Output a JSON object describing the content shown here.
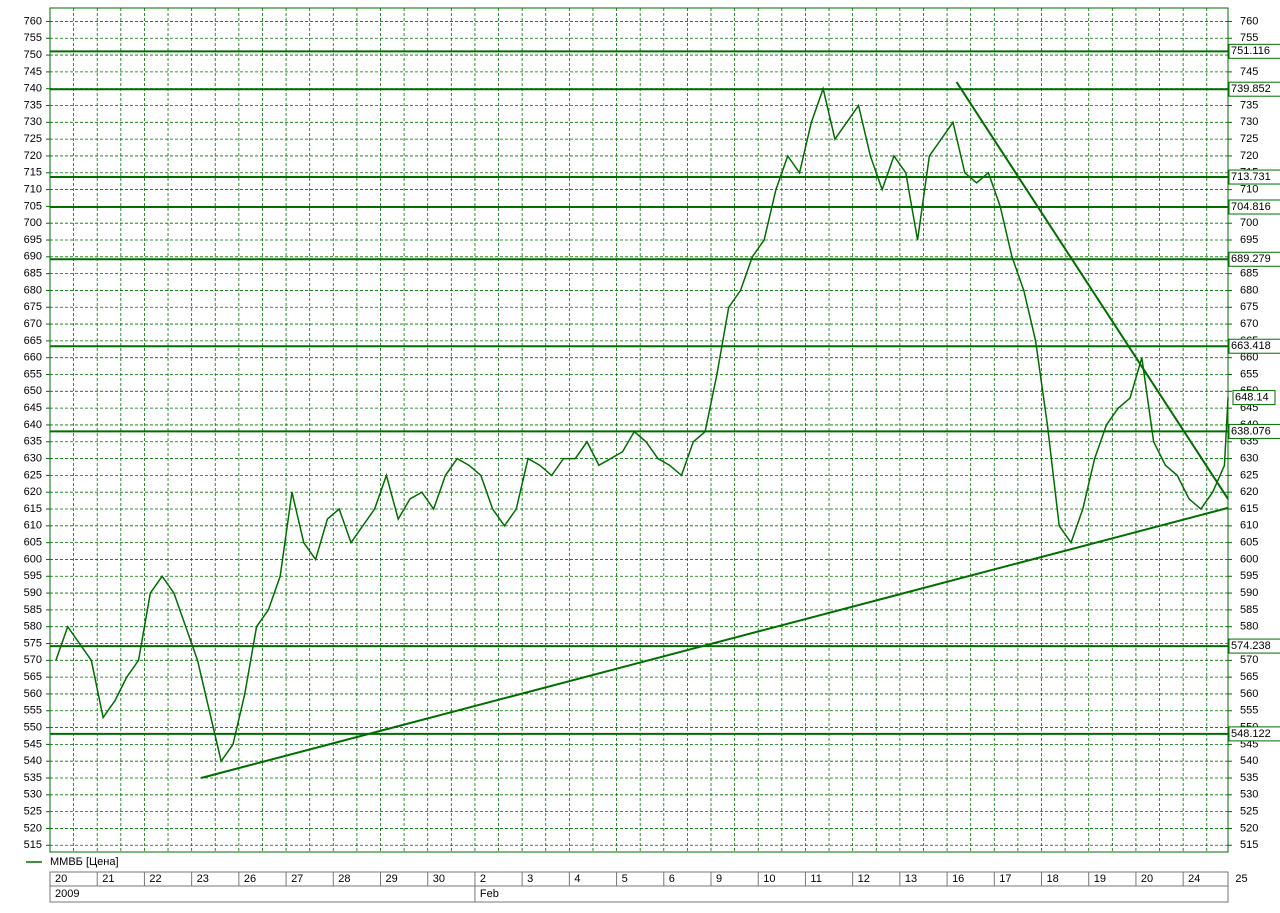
{
  "chart_data": {
    "type": "line",
    "series": [
      {
        "name": "ММВБ [Цена]",
        "color": "#006e00",
        "x": [
          0.125,
          0.375,
          0.625,
          0.875,
          1.125,
          1.375,
          1.625,
          1.875,
          2.125,
          2.375,
          2.625,
          2.875,
          3.125,
          3.375,
          3.625,
          3.875,
          4.125,
          4.375,
          4.625,
          4.875,
          5.125,
          5.375,
          5.625,
          5.875,
          6.125,
          6.375,
          6.625,
          6.875,
          7.125,
          7.375,
          7.625,
          7.875,
          8.125,
          8.375,
          8.625,
          8.875,
          9.125,
          9.375,
          9.625,
          9.875,
          10.125,
          10.375,
          10.625,
          10.875,
          11.125,
          11.375,
          11.625,
          11.875,
          12.125,
          12.375,
          12.625,
          12.875,
          13.125,
          13.375,
          13.625,
          13.875,
          14.125,
          14.375,
          14.625,
          14.875,
          15.125,
          15.375,
          15.625,
          15.875,
          16.125,
          16.375,
          16.625,
          16.875,
          17.125,
          17.375,
          17.625,
          17.875,
          18.125,
          18.375,
          18.625,
          18.875,
          19.125,
          19.375,
          19.625,
          19.875,
          20.125,
          20.375,
          20.625,
          20.875,
          21.125,
          21.375,
          21.625,
          21.875,
          22.125,
          22.375,
          22.625,
          22.875,
          23.125,
          23.375,
          23.625,
          23.875,
          24.125,
          24.375,
          24.625,
          24.875,
          24.95
        ],
        "values": [
          570,
          580,
          575,
          570,
          553,
          558,
          565,
          570,
          590,
          595,
          590,
          580,
          570,
          555,
          540,
          545,
          560,
          580,
          585,
          595,
          620,
          605,
          600,
          612,
          615,
          605,
          610,
          615,
          625,
          612,
          618,
          620,
          615,
          625,
          630,
          628,
          625,
          615,
          610,
          615,
          630,
          628,
          625,
          630,
          630,
          635,
          628,
          630,
          632,
          638,
          635,
          630,
          628,
          625,
          635,
          638,
          655,
          675,
          680,
          690,
          695,
          710,
          720,
          715,
          730,
          740,
          725,
          730,
          735,
          720,
          710,
          720,
          715,
          695,
          720,
          725,
          730,
          715,
          712,
          715,
          705,
          690,
          680,
          665,
          640,
          610,
          605,
          615,
          630,
          640,
          645,
          648,
          660,
          635,
          628,
          625,
          618,
          615,
          620,
          628,
          648.14
        ]
      }
    ],
    "xlim": [
      0,
      24.95
    ],
    "ylim": [
      513,
      764
    ],
    "xticks": [
      {
        "value": 0,
        "label": "20"
      },
      {
        "value": 1,
        "label": "21"
      },
      {
        "value": 2,
        "label": "22"
      },
      {
        "value": 3,
        "label": "23"
      },
      {
        "value": 4,
        "label": "26"
      },
      {
        "value": 5,
        "label": "27"
      },
      {
        "value": 6,
        "label": "28"
      },
      {
        "value": 7,
        "label": "29"
      },
      {
        "value": 8,
        "label": "30"
      },
      {
        "value": 9,
        "label": "2"
      },
      {
        "value": 10,
        "label": "3"
      },
      {
        "value": 11,
        "label": "4"
      },
      {
        "value": 12,
        "label": "5"
      },
      {
        "value": 13,
        "label": "6"
      },
      {
        "value": 14,
        "label": "9"
      },
      {
        "value": 15,
        "label": "10"
      },
      {
        "value": 16,
        "label": "11"
      },
      {
        "value": 17,
        "label": "12"
      },
      {
        "value": 18,
        "label": "13"
      },
      {
        "value": 19,
        "label": "16"
      },
      {
        "value": 20,
        "label": "17"
      },
      {
        "value": 21,
        "label": "18"
      },
      {
        "value": 22,
        "label": "19"
      },
      {
        "value": 23,
        "label": "20"
      },
      {
        "value": 24,
        "label": "24"
      },
      {
        "value": 25,
        "label": "25"
      }
    ],
    "xticks_period": [
      {
        "value": 0,
        "label": "2009"
      },
      {
        "value": 9,
        "label": "Feb"
      }
    ],
    "yticks": [
      515,
      520,
      525,
      530,
      535,
      540,
      545,
      550,
      555,
      560,
      565,
      570,
      575,
      580,
      585,
      590,
      595,
      600,
      605,
      610,
      615,
      620,
      625,
      630,
      635,
      640,
      645,
      650,
      655,
      660,
      665,
      670,
      675,
      680,
      685,
      690,
      695,
      700,
      705,
      710,
      715,
      720,
      725,
      730,
      735,
      740,
      745,
      750,
      755,
      760
    ],
    "levels": [
      751.116,
      739.852,
      713.731,
      704.816,
      689.279,
      663.418,
      638.076,
      574.238,
      548.122
    ],
    "trendlines": [
      {
        "x": [
          3.2,
          24.95
        ],
        "values": [
          535,
          615.335
        ]
      },
      {
        "x": [
          19.2,
          24.95
        ],
        "values": [
          742,
          618
        ]
      }
    ],
    "grid": true
  }
}
